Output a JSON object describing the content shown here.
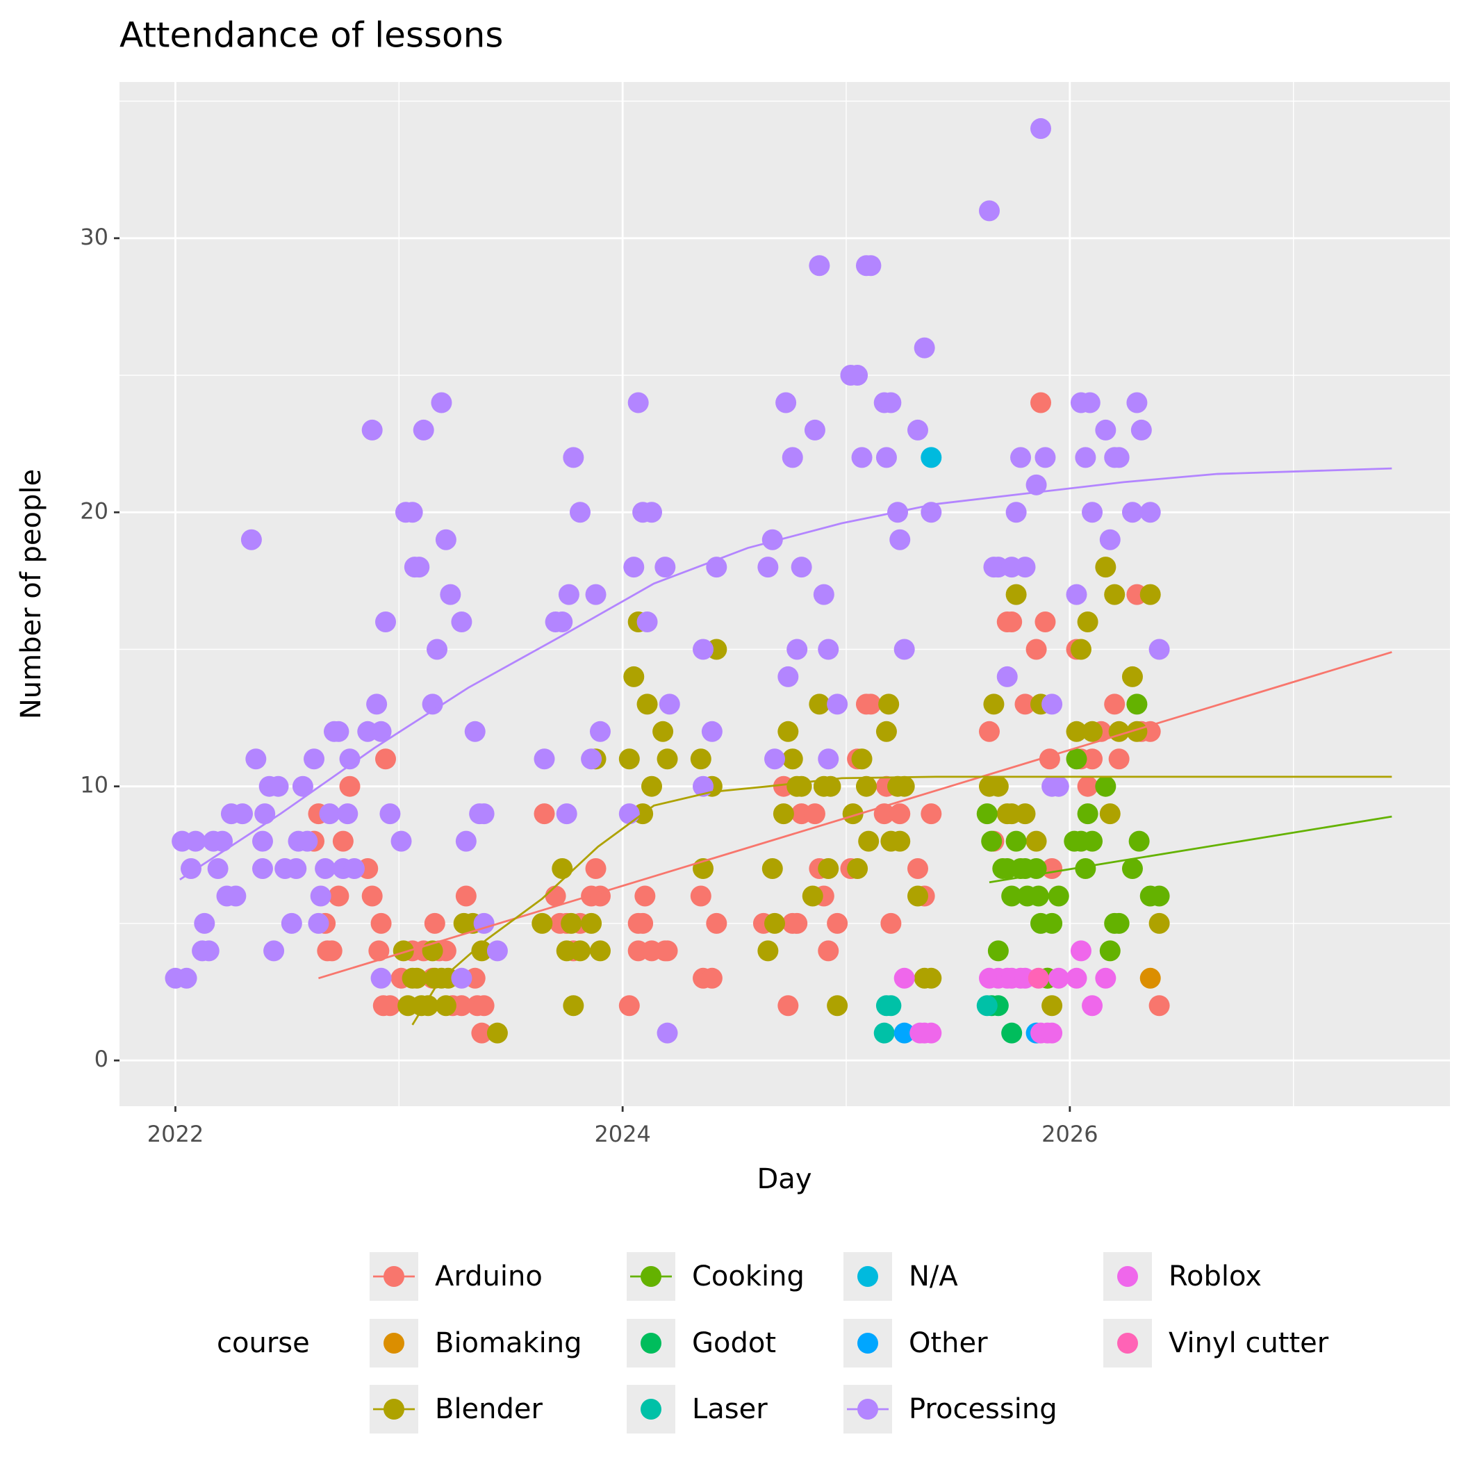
{
  "chart_data": {
    "type": "scatter",
    "title": "Attendance of lessons",
    "x_label": "Day",
    "y_label": "Number of people",
    "legend_title": "course",
    "xlim": [
      2021.75,
      2027.7
    ],
    "ylim": [
      -1.67,
      35.7
    ],
    "xticks": [
      2022,
      2024,
      2026
    ],
    "yticks": [
      0,
      10,
      20,
      30
    ],
    "xminor": [
      2023,
      2025,
      2027
    ],
    "yminor": [
      5,
      15,
      25,
      35
    ],
    "grid": true,
    "legend": "bottom",
    "series": [
      {
        "name": "Arduino",
        "color": "#F8766D",
        "x": [
          2022.64,
          2022.62,
          2022.67,
          2022.68,
          2022.7,
          2022.73,
          2022.75,
          2022.78,
          2022.86,
          2022.88,
          2022.91,
          2022.92,
          2022.94,
          2022.93,
          2022.96,
          2023.01,
          2023.06,
          2023.11,
          2023.15,
          2023.16,
          2023.18,
          2023.21,
          2023.24,
          2023.28,
          2023.3,
          2023.34,
          2023.35,
          2023.37,
          2023.38,
          2023.65,
          2023.7,
          2023.72,
          2023.75,
          2023.78,
          2023.81,
          2023.86,
          2023.88,
          2023.9,
          2024.03,
          2024.07,
          2024.09,
          2024.1,
          2024.07,
          2024.13,
          2024.19,
          2024.2,
          2024.35,
          2024.36,
          2024.4,
          2024.42,
          2024.63,
          2024.72,
          2024.74,
          2024.76,
          2024.78,
          2024.8,
          2024.86,
          2024.88,
          2024.9,
          2024.92,
          2024.96,
          2025.02,
          2025.05,
          2025.09,
          2025.11,
          2025.17,
          2025.18,
          2025.2,
          2025.24,
          2025.32,
          2025.35,
          2025.38,
          2025.64,
          2025.66,
          2025.72,
          2025.74,
          2025.8,
          2025.85,
          2025.87,
          2025.89,
          2025.91,
          2025.92,
          2026.03,
          2026.05,
          2026.08,
          2026.1,
          2026.14,
          2026.2,
          2026.22,
          2026.3,
          2026.32,
          2026.36,
          2026.4
        ],
        "values": [
          9,
          8,
          5,
          4,
          4,
          6,
          8,
          10,
          7,
          6,
          4,
          5,
          11,
          2,
          2,
          3,
          4,
          4,
          3,
          5,
          4,
          4,
          2,
          2,
          6,
          3,
          2,
          1,
          2,
          9,
          6,
          5,
          5,
          4,
          5,
          6,
          7,
          6,
          2,
          5,
          5,
          6,
          4,
          4,
          4,
          4,
          6,
          3,
          3,
          5,
          5,
          10,
          2,
          5,
          5,
          9,
          9,
          7,
          6,
          4,
          5,
          7,
          11,
          13,
          13,
          9,
          10,
          5,
          9,
          7,
          6,
          9,
          12,
          8,
          16,
          16,
          13,
          15,
          24,
          16,
          11,
          7,
          15,
          11,
          10,
          11,
          12,
          13,
          11,
          17,
          12,
          12,
          2
        ],
        "trend": {
          "x": [
            2022.64,
            2025.04,
            2027.44
          ],
          "values": [
            3.0,
            8.95,
            14.9
          ]
        }
      },
      {
        "name": "Biomaking",
        "color": "#DB8E00",
        "x": [
          2026.36
        ],
        "values": [
          3
        ]
      },
      {
        "name": "Blender",
        "color": "#AEA200",
        "x": [
          2023.02,
          2023.04,
          2023.06,
          2023.08,
          2023.1,
          2023.13,
          2023.15,
          2023.16,
          2023.19,
          2023.21,
          2023.22,
          2023.29,
          2023.33,
          2023.37,
          2023.44,
          2023.64,
          2023.73,
          2023.75,
          2023.78,
          2023.77,
          2023.81,
          2023.86,
          2023.88,
          2023.9,
          2024.03,
          2024.05,
          2024.07,
          2024.09,
          2024.11,
          2024.13,
          2024.18,
          2024.2,
          2024.35,
          2024.36,
          2024.4,
          2024.42,
          2024.65,
          2024.67,
          2024.68,
          2024.72,
          2024.74,
          2024.76,
          2024.78,
          2024.8,
          2024.85,
          2024.88,
          2024.9,
          2024.92,
          2024.93,
          2024.96,
          2025.03,
          2025.05,
          2025.07,
          2025.09,
          2025.1,
          2025.18,
          2025.19,
          2025.2,
          2025.23,
          2025.24,
          2025.26,
          2025.32,
          2025.35,
          2025.38,
          2025.64,
          2025.66,
          2025.68,
          2025.72,
          2025.74,
          2025.76,
          2025.8,
          2025.85,
          2025.87,
          2025.9,
          2025.92,
          2026.03,
          2026.05,
          2026.08,
          2026.1,
          2026.16,
          2026.18,
          2026.2,
          2026.22,
          2026.28,
          2026.3,
          2026.36,
          2026.4
        ],
        "values": [
          4,
          2,
          3,
          3,
          2,
          2,
          4,
          3,
          3,
          2,
          3,
          5,
          5,
          4,
          1,
          5,
          7,
          4,
          2,
          5,
          4,
          5,
          11,
          4,
          11,
          14,
          16,
          9,
          13,
          10,
          12,
          11,
          11,
          7,
          10,
          15,
          4,
          7,
          5,
          9,
          12,
          11,
          10,
          10,
          6,
          13,
          10,
          7,
          10,
          2,
          9,
          7,
          11,
          10,
          8,
          12,
          13,
          8,
          10,
          8,
          10,
          6,
          3,
          3,
          10,
          13,
          10,
          9,
          9,
          17,
          9,
          8,
          13,
          3,
          2,
          12,
          15,
          16,
          12,
          18,
          9,
          17,
          12,
          14,
          12,
          17,
          5
        ],
        "trend": {
          "x": [
            2023.06,
            2023.18,
            2023.39,
            2023.64,
            2023.89,
            2024.14,
            2024.4,
            2024.65,
            2024.98,
            2025.4,
            2027.44
          ],
          "values": [
            1.3,
            2.9,
            4.4,
            5.9,
            7.8,
            9.3,
            9.8,
            10.0,
            10.3,
            10.35,
            10.35
          ]
        }
      },
      {
        "name": "Cooking",
        "color": "#64B200",
        "x": [
          2025.63,
          2025.65,
          2025.68,
          2025.7,
          2025.72,
          2025.74,
          2025.76,
          2025.78,
          2025.8,
          2025.81,
          2025.85,
          2025.86,
          2025.87,
          2025.9,
          2025.92,
          2025.95,
          2026.02,
          2026.03,
          2026.05,
          2026.07,
          2026.08,
          2026.1,
          2026.16,
          2026.18,
          2026.2,
          2026.22,
          2026.28,
          2026.3,
          2026.31,
          2026.36,
          2026.4
        ],
        "values": [
          9,
          8,
          4,
          7,
          7,
          6,
          8,
          7,
          7,
          6,
          7,
          6,
          5,
          3,
          5,
          6,
          8,
          11,
          8,
          7,
          9,
          8,
          10,
          4,
          5,
          5,
          7,
          13,
          8,
          6,
          6
        ],
        "trend": {
          "x": [
            2025.64,
            2027.44
          ],
          "values": [
            6.5,
            8.9
          ]
        }
      },
      {
        "name": "Godot",
        "color": "#00BD5C",
        "x": [
          2025.65,
          2025.68,
          2025.74
        ],
        "values": [
          2,
          2,
          1
        ]
      },
      {
        "name": "Laser",
        "color": "#00C1A7",
        "x": [
          2025.17,
          2025.18,
          2025.2,
          2025.63
        ],
        "values": [
          1,
          2,
          2,
          2
        ]
      },
      {
        "name": "N/A",
        "color": "#00BADE",
        "x": [
          2025.38
        ],
        "values": [
          22
        ]
      },
      {
        "name": "Other",
        "color": "#00A6FF",
        "x": [
          2025.26,
          2025.85
        ],
        "values": [
          1,
          1
        ]
      },
      {
        "name": "Processing",
        "color": "#B385FF",
        "x": [
          2022.0,
          2022.05,
          2022.03,
          2022.09,
          2022.07,
          2022.12,
          2022.13,
          2022.15,
          2022.17,
          2022.19,
          2022.21,
          2022.23,
          2022.25,
          2022.27,
          2022.3,
          2022.34,
          2022.36,
          2022.39,
          2022.39,
          2022.4,
          2022.42,
          2022.44,
          2022.46,
          2022.49,
          2022.52,
          2022.54,
          2022.55,
          2022.57,
          2022.59,
          2022.62,
          2022.64,
          2022.65,
          2022.67,
          2022.69,
          2022.71,
          2022.73,
          2022.75,
          2022.77,
          2022.78,
          2022.8,
          2022.88,
          2022.86,
          2022.9,
          2022.92,
          2022.92,
          2022.94,
          2022.96,
          2023.01,
          2023.03,
          2023.06,
          2023.07,
          2023.09,
          2023.11,
          2023.15,
          2023.17,
          2023.19,
          2023.21,
          2023.23,
          2023.28,
          2023.28,
          2023.3,
          2023.34,
          2023.36,
          2023.38,
          2023.38,
          2023.44,
          2023.65,
          2023.7,
          2023.73,
          2023.75,
          2023.76,
          2023.78,
          2023.81,
          2023.86,
          2023.88,
          2023.9,
          2024.03,
          2024.05,
          2024.07,
          2024.09,
          2024.11,
          2024.13,
          2024.19,
          2024.2,
          2024.21,
          2024.36,
          2024.36,
          2024.4,
          2024.42,
          2024.65,
          2024.67,
          2024.68,
          2024.73,
          2024.74,
          2024.76,
          2024.78,
          2024.8,
          2024.86,
          2024.88,
          2024.9,
          2024.92,
          2024.92,
          2024.96,
          2025.02,
          2025.05,
          2025.07,
          2025.09,
          2025.11,
          2025.17,
          2025.18,
          2025.2,
          2025.23,
          2025.24,
          2025.26,
          2025.32,
          2025.35,
          2025.38,
          2025.64,
          2025.66,
          2025.68,
          2025.72,
          2025.74,
          2025.76,
          2025.78,
          2025.8,
          2025.85,
          2025.87,
          2025.89,
          2025.92,
          2025.92,
          2025.95,
          2026.03,
          2026.05,
          2026.07,
          2026.09,
          2026.1,
          2026.16,
          2026.18,
          2026.2,
          2026.22,
          2026.28,
          2026.3,
          2026.32,
          2026.36,
          2026.4
        ],
        "values": [
          3,
          3,
          8,
          8,
          7,
          4,
          5,
          4,
          8,
          7,
          8,
          6,
          9,
          6,
          9,
          19,
          11,
          8,
          7,
          9,
          10,
          4,
          10,
          7,
          5,
          7,
          8,
          10,
          8,
          11,
          5,
          6,
          7,
          9,
          12,
          12,
          7,
          9,
          11,
          7,
          23,
          12,
          13,
          12,
          3,
          16,
          9,
          8,
          20,
          20,
          18,
          18,
          23,
          13,
          15,
          24,
          19,
          17,
          16,
          3,
          8,
          12,
          9,
          9,
          5,
          4,
          11,
          16,
          16,
          9,
          17,
          22,
          20,
          11,
          17,
          12,
          9,
          18,
          24,
          20,
          16,
          20,
          18,
          1,
          13,
          15,
          10,
          12,
          18,
          18,
          19,
          11,
          24,
          14,
          22,
          15,
          18,
          23,
          29,
          17,
          15,
          11,
          13,
          25,
          25,
          22,
          29,
          29,
          24,
          22,
          24,
          20,
          19,
          15,
          23,
          26,
          20,
          31,
          18,
          18,
          14,
          18,
          20,
          22,
          18,
          21,
          34,
          22,
          13,
          10,
          10,
          17,
          24,
          22,
          24,
          20,
          23,
          19,
          22,
          22,
          20,
          24,
          23,
          20,
          15
        ],
        "trend": {
          "x": [
            2022.02,
            2022.47,
            2022.89,
            2023.31,
            2023.73,
            2024.14,
            2024.56,
            2024.98,
            2025.4,
            2025.82,
            2026.24,
            2026.66,
            2027.44
          ],
          "values": [
            6.6,
            9.0,
            11.4,
            13.6,
            15.5,
            17.4,
            18.7,
            19.6,
            20.3,
            20.7,
            21.1,
            21.4,
            21.6
          ]
        }
      },
      {
        "name": "Roblox",
        "color": "#EF67EB",
        "x": [
          2025.26,
          2025.33,
          2025.35,
          2025.38,
          2025.64,
          2025.68,
          2025.72,
          2025.74,
          2025.78,
          2025.8,
          2025.87,
          2025.9,
          2025.92,
          2025.95,
          2026.03,
          2026.05,
          2026.1,
          2026.16
        ],
        "values": [
          3,
          1,
          1,
          1,
          3,
          3,
          3,
          3,
          3,
          3,
          1,
          1,
          1,
          3,
          3,
          4,
          2,
          3
        ]
      },
      {
        "name": "Vinyl cutter",
        "color": "#FF63B6",
        "x": [
          2025.86
        ],
        "values": [
          3
        ]
      }
    ]
  }
}
